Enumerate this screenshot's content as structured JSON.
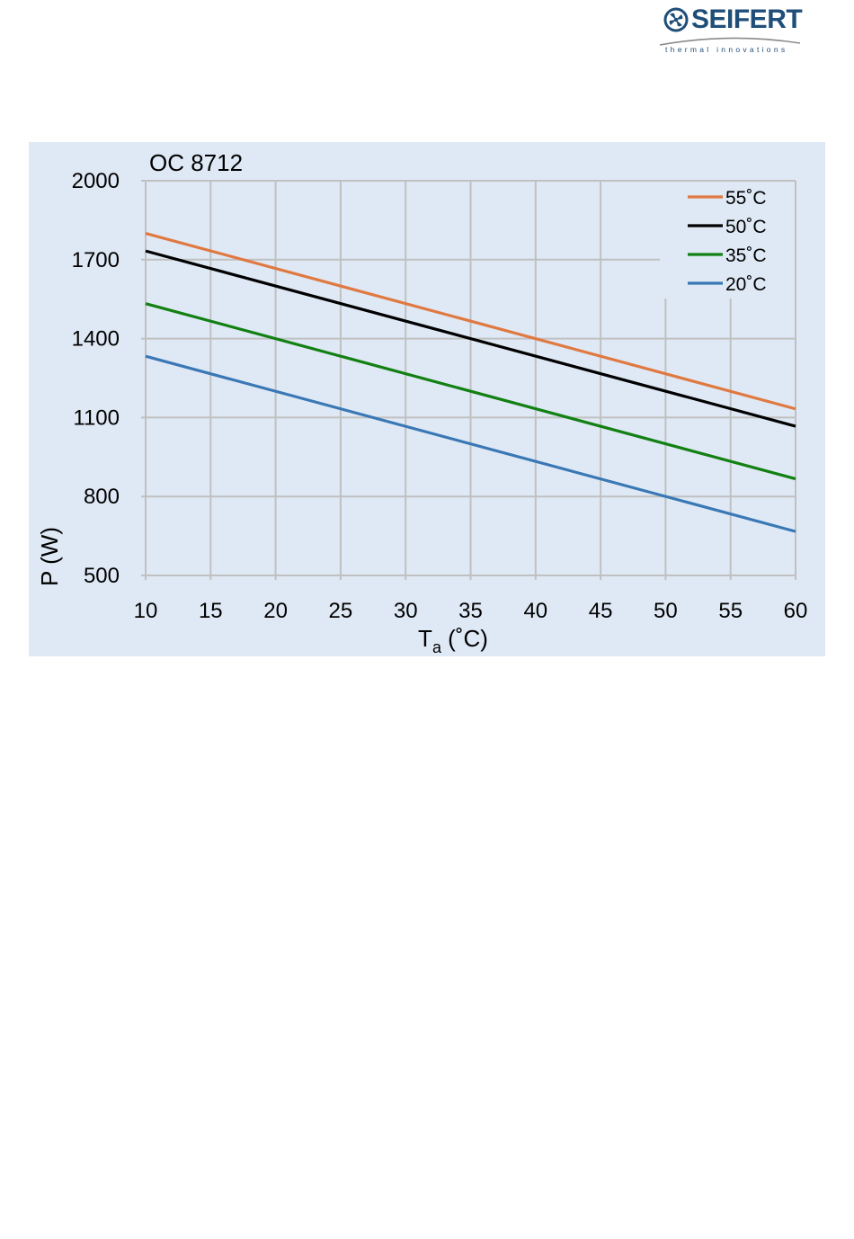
{
  "brand": {
    "name": "SEIFERT",
    "tagline": "thermal innovations",
    "color": "#1f4e79",
    "icon": "fan-icon"
  },
  "colors": {
    "panel_bg": "#dfe9f5",
    "grid": "#c0c0c0",
    "text": "#000000"
  },
  "chart_data": {
    "type": "line",
    "title": "OC 8712",
    "xlabel": "T",
    "xlabel_sub": "a",
    "xlabel_unit": " (˚C)",
    "ylabel": "P (W)",
    "xlim": [
      10,
      60
    ],
    "ylim": [
      500,
      2000
    ],
    "xticks": [
      10,
      15,
      20,
      25,
      30,
      35,
      40,
      45,
      50,
      55,
      60
    ],
    "yticks": [
      500,
      800,
      1100,
      1400,
      1700,
      2000
    ],
    "grid": true,
    "legend_position": "top-right",
    "series": [
      {
        "name": "55˚C",
        "color": "#e07941",
        "x": [
          10,
          60
        ],
        "values": [
          1800,
          1133
        ]
      },
      {
        "name": "50˚C",
        "color": "#000000",
        "x": [
          10,
          60
        ],
        "values": [
          1733,
          1067
        ]
      },
      {
        "name": "35˚C",
        "color": "#128012",
        "x": [
          10,
          60
        ],
        "values": [
          1533,
          867
        ]
      },
      {
        "name": "20˚C",
        "color": "#3a78b5",
        "x": [
          10,
          60
        ],
        "values": [
          1333,
          667
        ]
      }
    ]
  }
}
